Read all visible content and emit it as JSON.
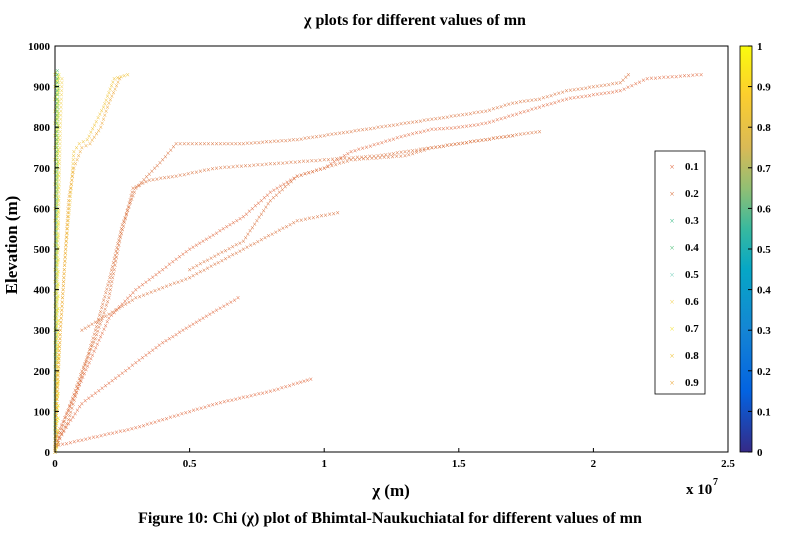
{
  "chart_data": {
    "type": "scatter",
    "title": "χ plots for different values of mn",
    "xlabel": "χ (m)",
    "ylabel": "Elevation (m)",
    "x_multiplier": "x 10",
    "x_multiplier_exp": "7",
    "xlim": [
      0,
      25000000
    ],
    "ylim": [
      0,
      1000
    ],
    "x_ticks": [
      "0",
      "0.5",
      "1",
      "1.5",
      "2",
      "2.5"
    ],
    "x_tick_values": [
      0,
      5000000,
      10000000,
      15000000,
      20000000,
      25000000
    ],
    "y_ticks": [
      "0",
      "100",
      "200",
      "300",
      "400",
      "500",
      "600",
      "700",
      "800",
      "900",
      "1000"
    ],
    "y_tick_values": [
      0,
      100,
      200,
      300,
      400,
      500,
      600,
      700,
      800,
      900,
      1000
    ],
    "colorbar": {
      "ticks": [
        "0",
        "0.1",
        "0.2",
        "0.3",
        "0.4",
        "0.5",
        "0.6",
        "0.7",
        "0.8",
        "0.9",
        "1"
      ],
      "colors": [
        "#352a87",
        "#0363e1",
        "#1485d4",
        "#06a7c6",
        "#38b99e",
        "#92bf73",
        "#d9ba56",
        "#fcce2e",
        "#f9fb0e"
      ]
    },
    "legend_position": "right",
    "marker": "×",
    "grid": false,
    "series": [
      {
        "name": "0.1",
        "color": "#e0673d",
        "streams": [
          [
            [
              0,
              15
            ],
            [
              1000000,
              30
            ],
            [
              2000000,
              45
            ],
            [
              3000000,
              60
            ],
            [
              4000000,
              80
            ],
            [
              5000000,
              100
            ],
            [
              6000000,
              120
            ],
            [
              7000000,
              135
            ],
            [
              8000000,
              150
            ],
            [
              9000000,
              170
            ],
            [
              9500000,
              180
            ]
          ],
          [
            [
              0,
              20
            ],
            [
              1000000,
              120
            ],
            [
              2000000,
              170
            ],
            [
              3000000,
              220
            ],
            [
              4000000,
              270
            ],
            [
              5000000,
              310
            ],
            [
              6000000,
              350
            ],
            [
              6800000,
              380
            ]
          ],
          [
            [
              0,
              30
            ],
            [
              2000000,
              330
            ],
            [
              3000000,
              400
            ],
            [
              4000000,
              450
            ],
            [
              5000000,
              500
            ],
            [
              6000000,
              540
            ],
            [
              7000000,
              580
            ],
            [
              8000000,
              640
            ],
            [
              9000000,
              680
            ],
            [
              10000000,
              700
            ],
            [
              11000000,
              740
            ],
            [
              12000000,
              760
            ],
            [
              13000000,
              780
            ],
            [
              14000000,
              795
            ],
            [
              15000000,
              800
            ],
            [
              16000000,
              810
            ],
            [
              17000000,
              830
            ],
            [
              18000000,
              850
            ],
            [
              19000000,
              870
            ],
            [
              20000000,
              880
            ],
            [
              21000000,
              890
            ],
            [
              22000000,
              920
            ],
            [
              24000000,
              930
            ]
          ]
        ]
      },
      {
        "name": "0.2",
        "color": "#d9703c",
        "streams": [
          [
            [
              0,
              10
            ],
            [
              1000000,
              200
            ],
            [
              1500000,
              280
            ],
            [
              2000000,
              380
            ],
            [
              2400000,
              520
            ],
            [
              2900000,
              650
            ],
            [
              3500000,
              670
            ],
            [
              4500000,
              680
            ],
            [
              6000000,
              700
            ],
            [
              8000000,
              710
            ],
            [
              10000000,
              720
            ],
            [
              12000000,
              730
            ],
            [
              13000000,
              740
            ],
            [
              14000000,
              750
            ],
            [
              15000000,
              760
            ],
            [
              16000000,
              770
            ],
            [
              17000000,
              780
            ],
            [
              18000000,
              790
            ]
          ],
          [
            [
              0,
              5
            ],
            [
              500000,
              80
            ],
            [
              1500000,
              300
            ],
            [
              2000000,
              420
            ],
            [
              2500000,
              560
            ],
            [
              3000000,
              650
            ],
            [
              4000000,
              720
            ],
            [
              4500000,
              760
            ],
            [
              6000000,
              760
            ],
            [
              7000000,
              760
            ],
            [
              8000000,
              765
            ],
            [
              9000000,
              770
            ],
            [
              10000000,
              780
            ],
            [
              11000000,
              790
            ],
            [
              12000000,
              800
            ],
            [
              13000000,
              810
            ],
            [
              14000000,
              820
            ],
            [
              15000000,
              830
            ],
            [
              16000000,
              840
            ],
            [
              17000000,
              860
            ],
            [
              18000000,
              870
            ],
            [
              19000000,
              890
            ],
            [
              20000000,
              900
            ],
            [
              21000000,
              910
            ],
            [
              21300000,
              930
            ]
          ],
          [
            [
              1000000,
              300
            ],
            [
              3000000,
              380
            ],
            [
              5000000,
              430
            ],
            [
              7000000,
              500
            ],
            [
              9000000,
              570
            ],
            [
              10500000,
              590
            ]
          ],
          [
            [
              5000000,
              450
            ],
            [
              7000000,
              520
            ],
            [
              8000000,
              620
            ],
            [
              9000000,
              680
            ],
            [
              11000000,
              720
            ],
            [
              13000000,
              730
            ],
            [
              14000000,
              750
            ],
            [
              15000000,
              760
            ],
            [
              16000000,
              770
            ],
            [
              17000000,
              780
            ]
          ]
        ]
      },
      {
        "name": "0.3",
        "color": "#3fbc8a",
        "streams": [
          [
            [
              0,
              0
            ],
            [
              20000,
              300
            ],
            [
              40000,
              600
            ],
            [
              60000,
              800
            ],
            [
              80000,
              930
            ]
          ]
        ]
      },
      {
        "name": "0.4",
        "color": "#52c07b",
        "streams": [
          [
            [
              0,
              0
            ],
            [
              30000,
              400
            ],
            [
              60000,
              750
            ],
            [
              90000,
              940
            ]
          ]
        ]
      },
      {
        "name": "0.5",
        "color": "#7fd3c0",
        "streams": [
          [
            [
              0,
              0
            ],
            [
              40000,
              350
            ],
            [
              80000,
              700
            ],
            [
              120000,
              900
            ]
          ]
        ]
      },
      {
        "name": "0.6",
        "color": "#f2d45e",
        "streams": [
          [
            [
              0,
              0
            ],
            [
              50000,
              200
            ],
            [
              100000,
              450
            ],
            [
              150000,
              650
            ],
            [
              200000,
              800
            ],
            [
              260000,
              920
            ]
          ]
        ]
      },
      {
        "name": "0.7",
        "color": "#f5e64a",
        "streams": [
          [
            [
              0,
              0
            ],
            [
              30000,
              300
            ],
            [
              60000,
              600
            ],
            [
              100000,
              850
            ],
            [
              150000,
              930
            ]
          ]
        ]
      },
      {
        "name": "0.8",
        "color": "#f0c43a",
        "streams": [
          [
            [
              0,
              10
            ],
            [
              200000,
              300
            ],
            [
              400000,
              500
            ],
            [
              600000,
              650
            ],
            [
              700000,
              740
            ],
            [
              900000,
              760
            ],
            [
              1200000,
              770
            ],
            [
              1800000,
              850
            ],
            [
              2200000,
              920
            ],
            [
              2700000,
              930
            ]
          ]
        ]
      },
      {
        "name": "0.9",
        "color": "#eca83a",
        "streams": [
          [
            [
              0,
              0
            ],
            [
              100000,
              200
            ],
            [
              300000,
              400
            ],
            [
              500000,
              620
            ],
            [
              700000,
              700
            ],
            [
              1000000,
              750
            ],
            [
              1300000,
              760
            ],
            [
              1700000,
              800
            ],
            [
              2000000,
              860
            ],
            [
              2400000,
              920
            ]
          ]
        ]
      }
    ],
    "yellow_column": {
      "x": [
        0,
        150000
      ],
      "color": "#f2ee12"
    }
  },
  "caption": "Figure 10: Chi (χ) plot of Bhimtal-Naukuchiatal for different values of mn"
}
